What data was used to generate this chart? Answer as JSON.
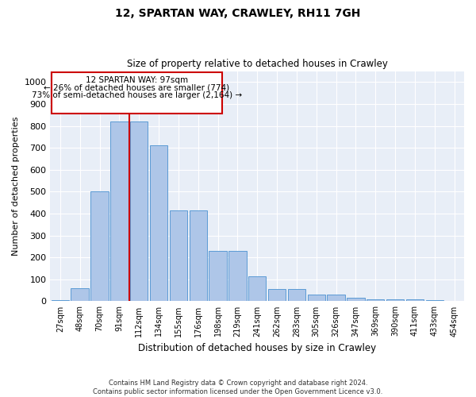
{
  "title": "12, SPARTAN WAY, CRAWLEY, RH11 7GH",
  "subtitle": "Size of property relative to detached houses in Crawley",
  "xlabel": "Distribution of detached houses by size in Crawley",
  "ylabel": "Number of detached properties",
  "property_label": "12 SPARTAN WAY: 97sqm",
  "pct_smaller": "26% of detached houses are smaller (774)",
  "pct_larger": "73% of semi-detached houses are larger (2,164)",
  "bins": [
    "27sqm",
    "48sqm",
    "70sqm",
    "91sqm",
    "112sqm",
    "134sqm",
    "155sqm",
    "176sqm",
    "198sqm",
    "219sqm",
    "241sqm",
    "262sqm",
    "283sqm",
    "305sqm",
    "326sqm",
    "347sqm",
    "369sqm",
    "390sqm",
    "411sqm",
    "433sqm",
    "454sqm"
  ],
  "bar_values": [
    5,
    60,
    500,
    820,
    820,
    710,
    415,
    415,
    230,
    230,
    115,
    55,
    55,
    30,
    30,
    15,
    10,
    10,
    10,
    5,
    0
  ],
  "bar_color": "#aec6e8",
  "bar_edge_color": "#5b9bd5",
  "bg_color": "#e8eef7",
  "grid_color": "#ffffff",
  "vline_color": "#cc0000",
  "box_color": "#cc0000",
  "ylim": [
    0,
    1050
  ],
  "yticks": [
    0,
    100,
    200,
    300,
    400,
    500,
    600,
    700,
    800,
    900,
    1000
  ],
  "footer1": "Contains HM Land Registry data © Crown copyright and database right 2024.",
  "footer2": "Contains public sector information licensed under the Open Government Licence v3.0."
}
